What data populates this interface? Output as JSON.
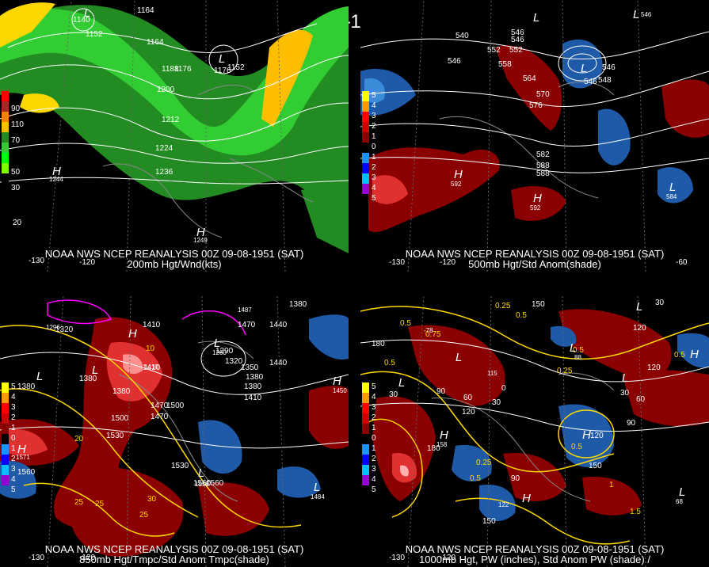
{
  "header": {
    "title": "00Z 09-08-1951 (SAT)"
  },
  "panels": [
    {
      "id": "p1",
      "line1": "NOAA NWS NCEP REANALYSIS 00Z 09-08-1951 (SAT)",
      "line2": "200mb Hgt/Wnd(kts)",
      "legend": {
        "colors": [
          "#ff0000",
          "#ff7f00",
          "#ffbf00",
          "#ffd700",
          "#228b22",
          "#32cd32",
          "#00ff00",
          "#7cfc00"
        ],
        "labels": [
          "90",
          "110",
          "70",
          "50",
          "30"
        ]
      },
      "contour_labels": [
        "1164",
        "1152",
        "1164",
        "1188",
        "1176",
        "1152",
        "1200",
        "1212",
        "1224",
        "1236",
        "1140",
        "1176"
      ],
      "centers": [
        "L",
        "L",
        "H",
        "H"
      ],
      "center_values": [
        "1244",
        "1249"
      ],
      "lon_labels": [
        "-130",
        "-120",
        "20"
      ]
    },
    {
      "id": "p2",
      "line1": "NOAA NWS NCEP REANALYSIS 00Z 09-08-1951 (SAT)",
      "line2": "500mb Hgt/Std Anom(shade)",
      "legend": {
        "colors": [
          "#ffff00",
          "#ff9900",
          "#ff0000",
          "#cc0000",
          "#8b0000",
          "#000000",
          "#1e90ff",
          "#0000ff",
          "#00bfff",
          "#9400d3"
        ],
        "labels": [
          "5",
          "4",
          "3",
          "2",
          "1",
          "0",
          "1",
          "2",
          "3",
          "4",
          "5"
        ]
      },
      "contour_labels": [
        "546",
        "552",
        "558",
        "546",
        "564",
        "570",
        "576",
        "582",
        "588",
        "552",
        "540",
        "546",
        "546",
        "546",
        "548",
        "588"
      ],
      "centers": [
        "L",
        "L",
        "L",
        "L",
        "H",
        "H",
        "L"
      ],
      "center_values": [
        "592",
        "592",
        "546",
        "584"
      ],
      "lon_labels": [
        "-130",
        "-120",
        "-60"
      ]
    },
    {
      "id": "p3",
      "line1": "NOAA NWS NCEP REANALYSIS 00Z 09-08-1951 (SAT)",
      "line2": "850mb Hgt/Tmpc/Std Anom Tmpc(shade)",
      "legend": {
        "colors": [
          "#ffff00",
          "#ff9900",
          "#ff0000",
          "#cc0000",
          "#8b0000",
          "#000000",
          "#1e90ff",
          "#0000ff",
          "#00bfff",
          "#9400d3"
        ],
        "labels": [
          "5",
          "4",
          "3",
          "2",
          "1",
          "0",
          "1",
          "2",
          "3",
          "4",
          "5"
        ]
      },
      "contour_labels": [
        "1380",
        "1320",
        "1380",
        "1410",
        "1440",
        "1380",
        "1440",
        "1290",
        "1320",
        "1350",
        "1380",
        "1410",
        "1470",
        "1500",
        "1380",
        "1410",
        "1470",
        "1500",
        "1530",
        "1560",
        "1530",
        "1560",
        "1560",
        "30",
        "25",
        "25",
        "10",
        "20",
        "25",
        "1470",
        "1380"
      ],
      "centers": [
        "L",
        "L",
        "L",
        "H",
        "H",
        "L",
        "H",
        "L"
      ],
      "center_values": [
        "1296",
        "1410",
        "1260",
        "1450",
        "1484",
        "1558",
        "1571",
        "1487"
      ],
      "lon_labels": [
        "-130",
        "-120"
      ]
    },
    {
      "id": "p4",
      "line1": "NOAA NWS NCEP REANALYSIS 00Z 09-08-1951 (SAT)",
      "line2": "1000mb Hgt, PW (inches), Std Anom PW (shade) /",
      "legend": {
        "colors": [
          "#ffff00",
          "#ff9900",
          "#ff0000",
          "#cc0000",
          "#8b0000",
          "#000000",
          "#1e90ff",
          "#0000ff",
          "#00bfff",
          "#9400d3"
        ],
        "labels": [
          "5",
          "4",
          "3",
          "2",
          "1",
          "0",
          "1",
          "2",
          "3",
          "4",
          "5"
        ]
      },
      "contour_labels": [
        "150",
        "0.25",
        "0.5",
        "30",
        "120",
        "0.5",
        "0.75",
        "180",
        "0.5",
        "90",
        "60",
        "30",
        "120",
        "30",
        "0",
        "0.25",
        "0.5",
        "180",
        "150",
        "0.25",
        "0.5",
        "90",
        "120",
        "150",
        "90",
        "60",
        "30",
        "0.5",
        "1.5",
        "0.5",
        "120",
        "1"
      ],
      "centers": [
        "L",
        "L",
        "L",
        "H",
        "H",
        "L",
        "L",
        "H",
        "H",
        "L"
      ],
      "center_values": [
        "-78",
        "115",
        "88",
        "158",
        "122",
        "68"
      ],
      "lon_labels": [
        "-130",
        "-120"
      ]
    }
  ]
}
